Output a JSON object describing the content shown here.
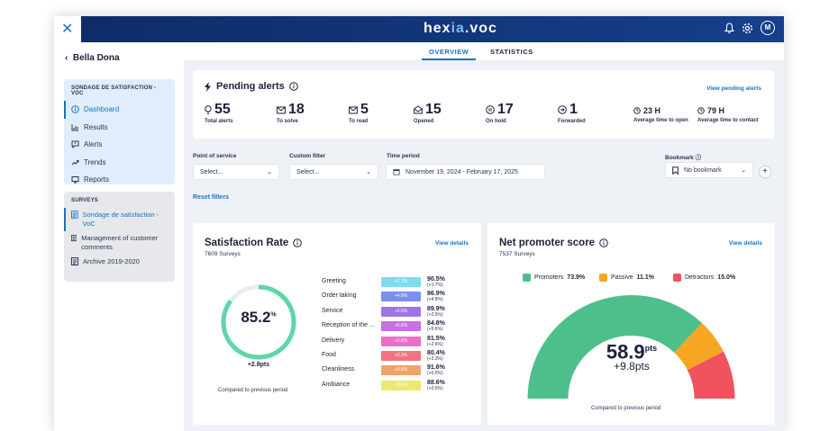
{
  "app": {
    "logo_a": "hex",
    "logo_b": "ia",
    "logo_c": ".voc",
    "avatar": "M"
  },
  "tabs": [
    "OVERVIEW",
    "STATISTICS"
  ],
  "sidebar": {
    "back_label": "Bella Dona",
    "section1_title": "SONDAGE DE SATISFACTION - VOC",
    "items": [
      "Dashboard",
      "Results",
      "Alerts",
      "Trends",
      "Reports"
    ],
    "section2_title": "SURVEYS",
    "surveys": [
      "Sondage de satisfaction - VoC",
      "Management of customer comments",
      "Archive 2019-2020"
    ]
  },
  "alerts": {
    "title": "Pending alerts",
    "link": "View pending alerts",
    "stats": [
      {
        "value": "55",
        "label": "Total alerts"
      },
      {
        "value": "18",
        "label": "To solve"
      },
      {
        "value": "5",
        "label": "To read"
      },
      {
        "value": "15",
        "label": "Opened"
      },
      {
        "value": "17",
        "label": "On hold"
      },
      {
        "value": "1",
        "label": "Forwarded"
      }
    ],
    "avg_open": {
      "value": "23 H",
      "label": "Average time to open"
    },
    "avg_contact": {
      "value": "79 H",
      "label": "Average time to contact"
    }
  },
  "filters": {
    "pos_label": "Point of service",
    "pos_value": "Select...",
    "custom_label": "Custom filter",
    "custom_value": "Select...",
    "period_label": "Time period",
    "period_value": "November 19, 2024 - February 17, 2025",
    "bookmark_label": "Bookmark",
    "bookmark_value": "No bookmark",
    "reset": "Reset filters"
  },
  "satisfaction": {
    "title": "Satisfaction Rate",
    "subtitle": "7609 Surveys",
    "link": "View details",
    "rate": "85.2",
    "rate_unit": "%",
    "rate_fraction": 0.852,
    "delta": "+2.8pts",
    "compare": "Compared to previous period",
    "rows": [
      {
        "label": "Greeting",
        "delta": "+1.7%",
        "value": "90.5%",
        "sub": "(+1.7%)",
        "color": "#7fdcef"
      },
      {
        "label": "Order taking",
        "delta": "+4.8%",
        "value": "86.9%",
        "sub": "(+4.8%)",
        "color": "#7b8ff0"
      },
      {
        "label": "Service",
        "delta": "+2.5%",
        "value": "89.9%",
        "sub": "(+2.5%)",
        "color": "#a073e8"
      },
      {
        "label": "Reception of the ...",
        "delta": "+5.6%",
        "value": "84.8%",
        "sub": "(+5.6%)",
        "color": "#c86ee0"
      },
      {
        "label": "Delivery",
        "delta": "+2.6%",
        "value": "81.5%",
        "sub": "(+2.6%)",
        "color": "#ec6fc6"
      },
      {
        "label": "Food",
        "delta": "+3.3%",
        "value": "80.4%",
        "sub": "(+3.3%)",
        "color": "#f07482"
      },
      {
        "label": "Cleanliness",
        "delta": "+0.5%",
        "value": "91.6%",
        "sub": "(+0.5%)",
        "color": "#f2a36a"
      },
      {
        "label": "Ambiance",
        "delta": "+0.5%",
        "value": "88.6%",
        "sub": "(+0.5%)",
        "color": "#ece870"
      }
    ]
  },
  "nps": {
    "title": "Net promoter score",
    "subtitle": "7537 Surveys",
    "link": "View details",
    "legend": [
      {
        "name": "Promoters",
        "value": "73.9%",
        "color": "#4dbf8b"
      },
      {
        "name": "Passive",
        "value": "11.1%",
        "color": "#f5a623"
      },
      {
        "name": "Detractors",
        "value": "15.0%",
        "color": "#f0525e"
      }
    ],
    "shares": [
      73.9,
      11.1,
      15.0
    ],
    "score": "58.9",
    "unit": "pts",
    "delta": "+9.8pts",
    "compare": "Compared to previous period"
  }
}
